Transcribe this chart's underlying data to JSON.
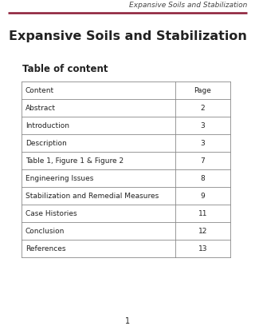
{
  "header_text": "Expansive Soils and Stabilization",
  "header_line_color": "#8b1a35",
  "header_text_color": "#444444",
  "title": "Expansive Soils and Stabilization",
  "toc_heading": "Table of content",
  "table_rows": [
    [
      "Content",
      "Page"
    ],
    [
      "Abstract",
      "2"
    ],
    [
      "Introduction",
      "3"
    ],
    [
      "Description",
      "3"
    ],
    [
      "Table 1, Figure 1 & Figure 2",
      "7"
    ],
    [
      "Engineering Issues",
      "8"
    ],
    [
      "Stabilization and Remedial Measures",
      "9"
    ],
    [
      "Case Histories",
      "11"
    ],
    [
      "Conclusion",
      "12"
    ],
    [
      "References",
      "13"
    ]
  ],
  "page_number": "1",
  "bg_color": "#ffffff",
  "table_border_color": "#888888",
  "text_color": "#222222",
  "header_font_size": 6.5,
  "title_font_size": 11.5,
  "toc_font_size": 8.5,
  "table_font_size": 6.5,
  "page_num_font_size": 7,
  "fig_w": 3.2,
  "fig_h": 4.14,
  "dpi": 100
}
